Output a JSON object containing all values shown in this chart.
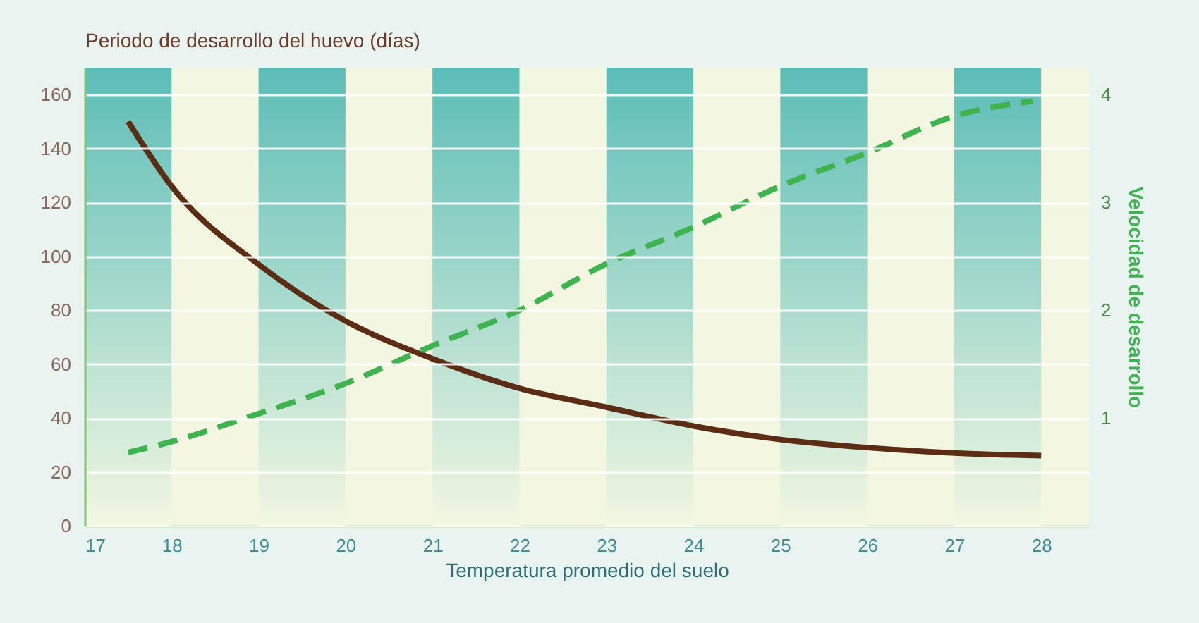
{
  "chart_data": {
    "type": "line",
    "ylabel": "Periodo de desarrollo del huevo (días)",
    "xlabel": "Temperatura promedio del suelo",
    "y2label": "Velocidad de desarrollo",
    "xlim": [
      17,
      28.55
    ],
    "xticks": [
      17,
      18,
      19,
      20,
      21,
      22,
      23,
      24,
      25,
      26,
      27,
      28
    ],
    "ylim": [
      0,
      170
    ],
    "yticks": [
      0,
      20,
      40,
      60,
      80,
      100,
      120,
      140,
      160
    ],
    "y2lim": [
      0,
      4.25
    ],
    "y2ticks": [
      1,
      2,
      3,
      4
    ],
    "grid": "y",
    "series": [
      {
        "color": "#5a2d14",
        "line_style": "solid",
        "x": [
          17.5,
          18,
          19,
          20,
          21,
          22,
          23,
          24,
          25,
          26,
          27,
          28
        ],
        "values": [
          150,
          126,
          97,
          76,
          62,
          51,
          44,
          37,
          32,
          29,
          27,
          26
        ]
      },
      {
        "color": "#3fb34f",
        "line_style": "dashed",
        "axis": "y2",
        "x": [
          17.5,
          18,
          19,
          20,
          21,
          22,
          23,
          24,
          25,
          26,
          27,
          27.9
        ],
        "values": [
          0.68,
          0.78,
          1.04,
          1.32,
          1.67,
          2.0,
          2.43,
          2.77,
          3.15,
          3.46,
          3.8,
          3.94
        ]
      }
    ],
    "bands": [
      {
        "axis": "x",
        "from": 17,
        "to": 18,
        "color": "#5bbdb7"
      },
      {
        "axis": "x",
        "from": 19,
        "to": 20,
        "color": "#5bbdb7"
      },
      {
        "axis": "x",
        "from": 21,
        "to": 22,
        "color": "#5bbdb7"
      },
      {
        "axis": "x",
        "from": 23,
        "to": 24,
        "color": "#5bbdb7"
      },
      {
        "axis": "x",
        "from": 25,
        "to": 26,
        "color": "#5bbdb7"
      },
      {
        "axis": "x",
        "from": 27,
        "to": 28,
        "color": "#5bbdb7"
      }
    ]
  }
}
